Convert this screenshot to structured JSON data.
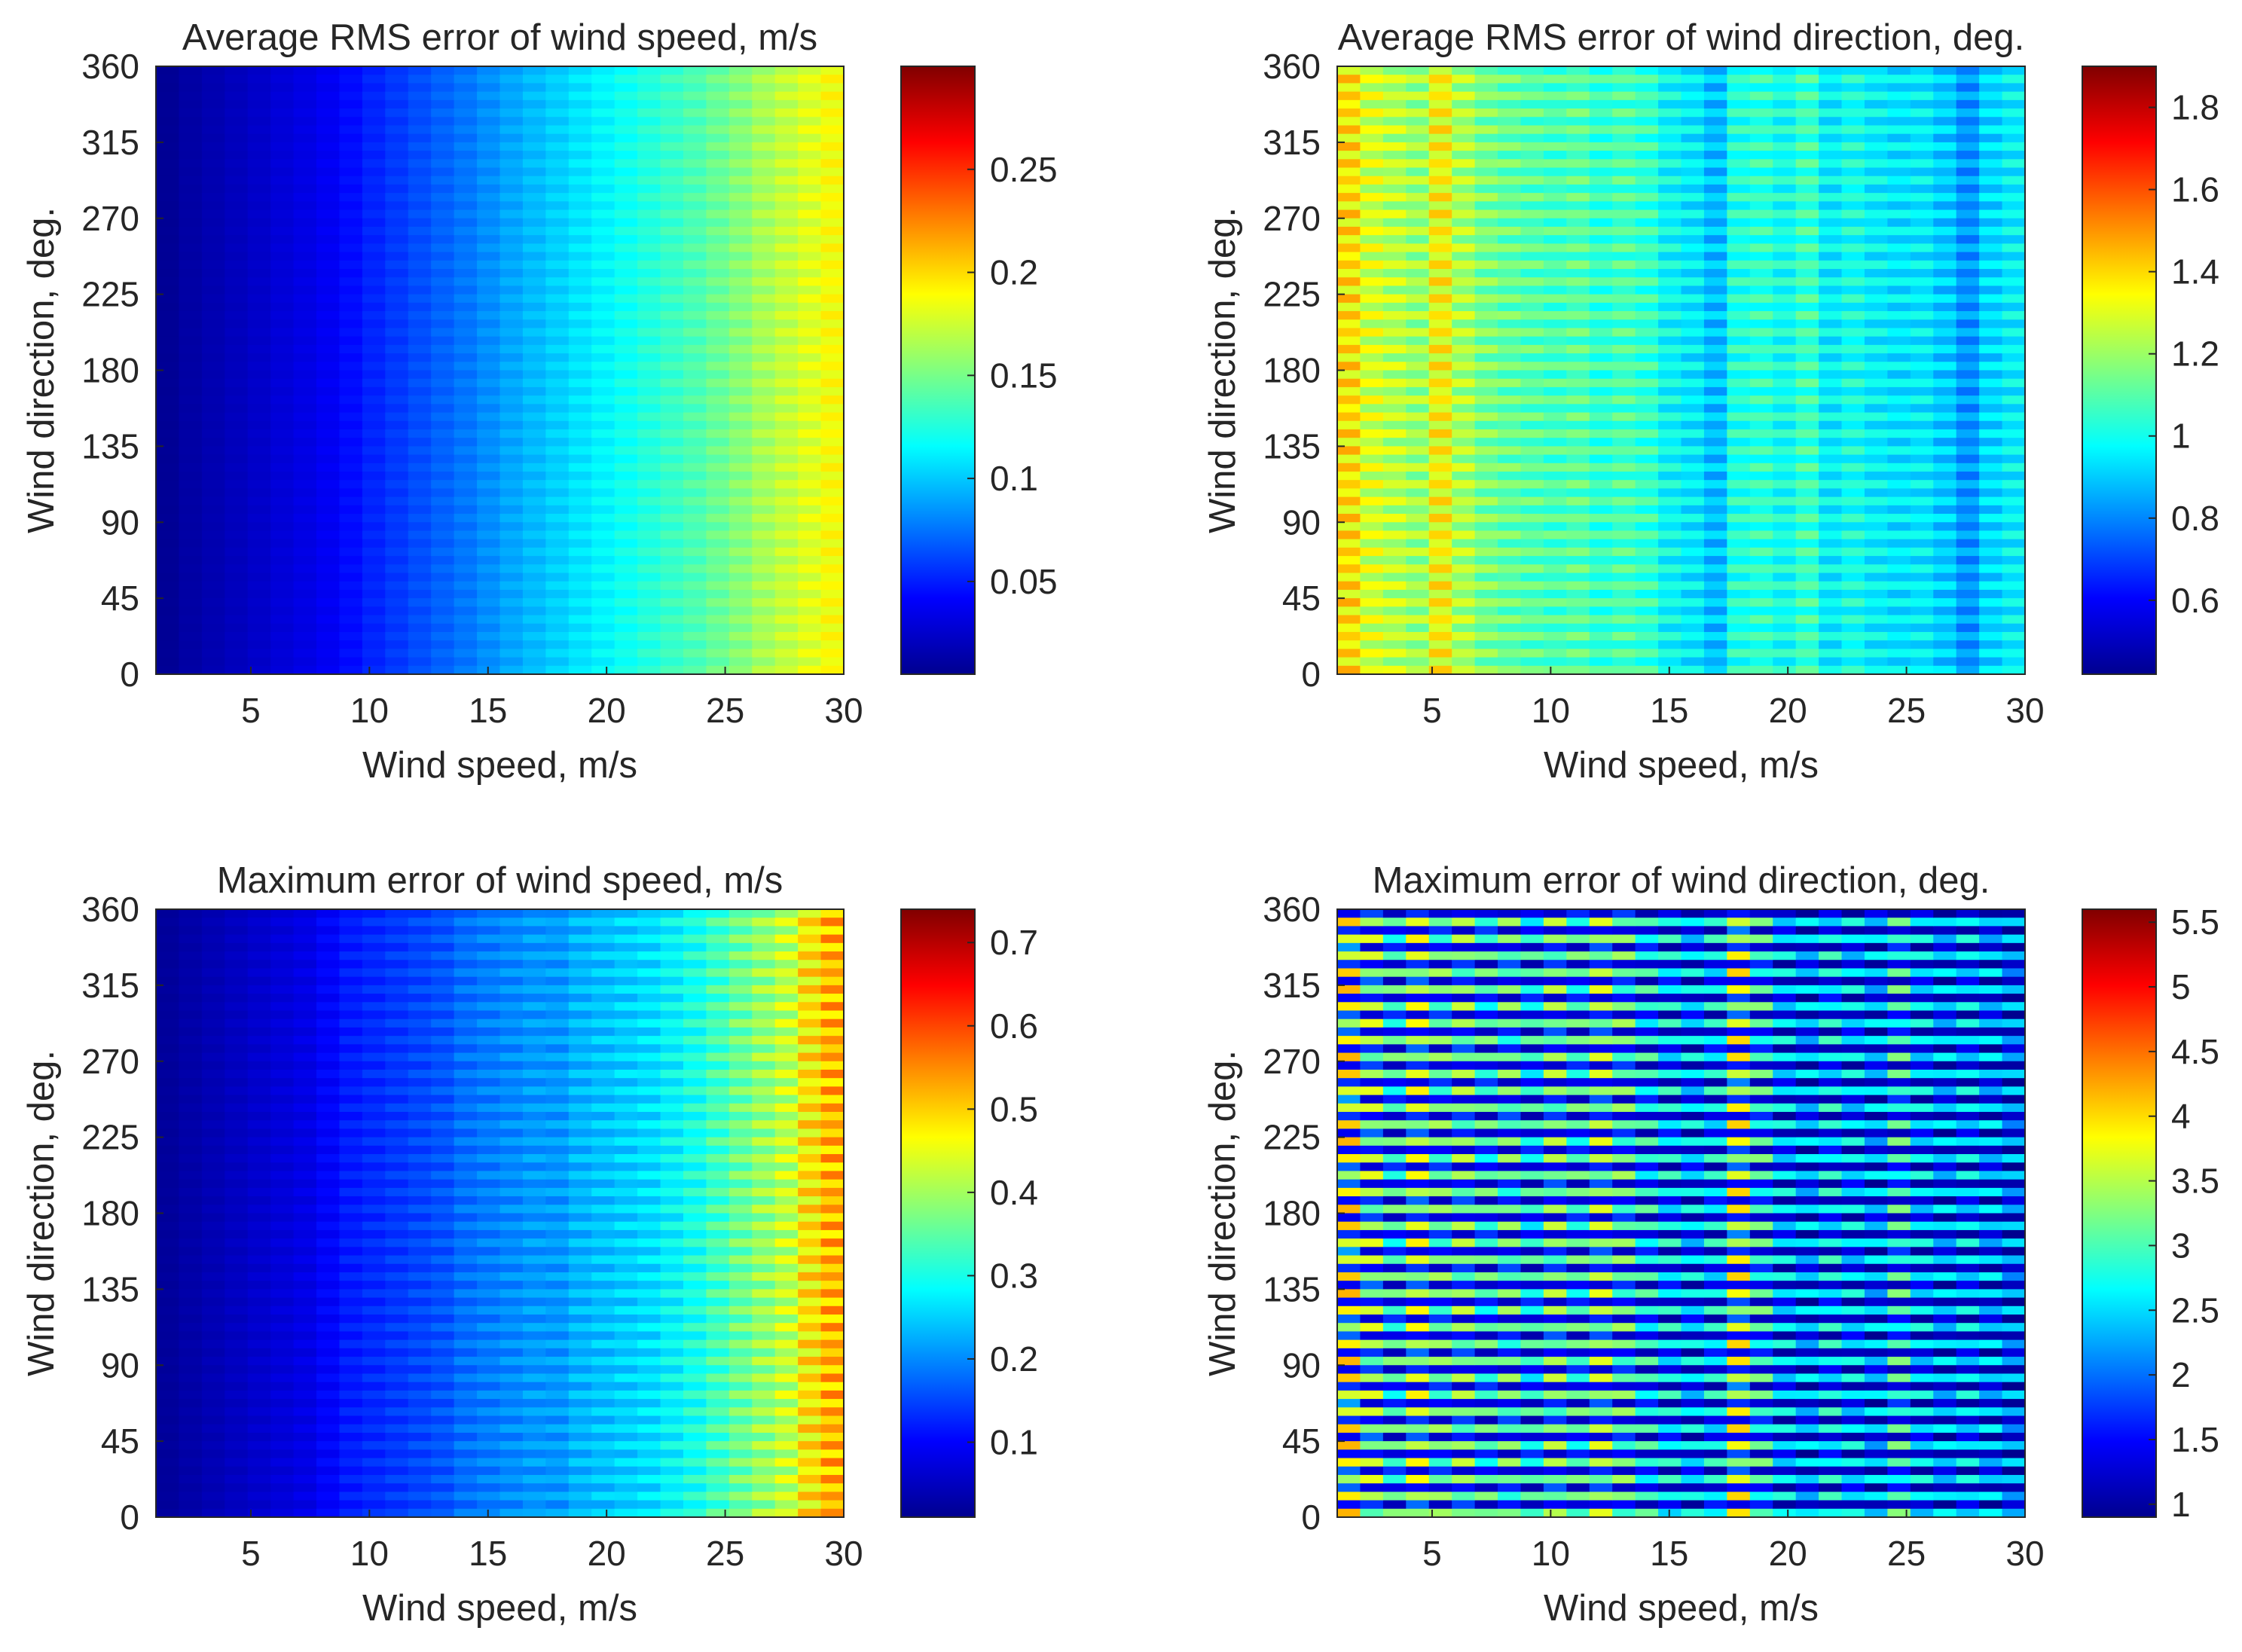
{
  "figure": {
    "colormap_stops": [
      "#00008f",
      "#0000ff",
      "#0080ff",
      "#00ffff",
      "#80ff80",
      "#ffff00",
      "#ff8000",
      "#ff0000",
      "#800000"
    ]
  },
  "chart_data": [
    {
      "type": "heatmap",
      "title": "Average RMS error of wind speed, m/s",
      "xlabel": "Wind speed, m/s",
      "ylabel": "Wind direction, deg.",
      "xlim": [
        1,
        30
      ],
      "ylim": [
        0,
        360
      ],
      "x_ticks": [
        "5",
        "10",
        "15",
        "20",
        "25",
        "30"
      ],
      "y_ticks": [
        "0",
        "45",
        "90",
        "135",
        "180",
        "225",
        "270",
        "315",
        "360"
      ],
      "colorbar": {
        "range": [
          0.005,
          0.3
        ],
        "ticks": [
          "0.05",
          "0.1",
          "0.15",
          "0.2",
          "0.25"
        ]
      },
      "x": [
        1,
        2,
        3,
        4,
        5,
        6,
        7,
        8,
        9,
        10,
        11,
        12,
        13,
        14,
        15,
        16,
        17,
        18,
        19,
        20,
        21,
        22,
        23,
        24,
        25,
        26,
        27,
        28,
        29,
        30
      ],
      "column_values": [
        0.007,
        0.012,
        0.016,
        0.02,
        0.024,
        0.029,
        0.033,
        0.038,
        0.045,
        0.052,
        0.058,
        0.064,
        0.07,
        0.076,
        0.083,
        0.09,
        0.096,
        0.102,
        0.108,
        0.114,
        0.12,
        0.126,
        0.132,
        0.138,
        0.146,
        0.154,
        0.164,
        0.172,
        0.18,
        0.188
      ],
      "stripe_amplitude": 0.04
    },
    {
      "type": "heatmap",
      "title": "Average RMS error of wind direction, deg.",
      "xlabel": "Wind speed, m/s",
      "ylabel": "Wind direction, deg.",
      "xlim": [
        1,
        30
      ],
      "ylim": [
        0,
        360
      ],
      "x_ticks": [
        "5",
        "10",
        "15",
        "20",
        "25",
        "30"
      ],
      "y_ticks": [
        "0",
        "45",
        "90",
        "135",
        "180",
        "225",
        "270",
        "315",
        "360"
      ],
      "colorbar": {
        "range": [
          0.42,
          1.9
        ],
        "ticks": [
          "0.6",
          "0.8",
          "1",
          "1.2",
          "1.4",
          "1.6",
          "1.8"
        ]
      },
      "x": [
        1,
        2,
        3,
        4,
        5,
        6,
        7,
        8,
        9,
        10,
        11,
        12,
        13,
        14,
        15,
        16,
        17,
        18,
        19,
        20,
        21,
        22,
        23,
        24,
        25,
        26,
        27,
        28,
        29,
        30
      ],
      "column_values": [
        1.38,
        1.28,
        1.24,
        1.2,
        1.34,
        1.22,
        1.15,
        1.12,
        1.1,
        1.08,
        1.1,
        1.05,
        1.08,
        1.05,
        0.98,
        0.95,
        0.88,
        1.02,
        1.04,
        1.0,
        1.06,
        0.96,
        1.0,
        0.96,
        0.94,
        0.95,
        0.9,
        0.82,
        0.92,
        0.96
      ],
      "stripe_amplitude": 0.07
    },
    {
      "type": "heatmap",
      "title": "Maximum error of wind speed, m/s",
      "xlabel": "Wind speed, m/s",
      "ylabel": "Wind direction, deg.",
      "xlim": [
        1,
        30
      ],
      "ylim": [
        0,
        360
      ],
      "x_ticks": [
        "5",
        "10",
        "15",
        "20",
        "25",
        "30"
      ],
      "y_ticks": [
        "0",
        "45",
        "90",
        "135",
        "180",
        "225",
        "270",
        "315",
        "360"
      ],
      "colorbar": {
        "range": [
          0.01,
          0.74
        ],
        "ticks": [
          "0.1",
          "0.2",
          "0.3",
          "0.4",
          "0.5",
          "0.6",
          "0.7"
        ]
      },
      "x": [
        1,
        2,
        3,
        4,
        5,
        6,
        7,
        8,
        9,
        10,
        11,
        12,
        13,
        14,
        15,
        16,
        17,
        18,
        19,
        20,
        21,
        22,
        23,
        24,
        25,
        26,
        27,
        28,
        29,
        30
      ],
      "column_values": [
        0.02,
        0.03,
        0.04,
        0.05,
        0.06,
        0.07,
        0.08,
        0.1,
        0.12,
        0.13,
        0.14,
        0.15,
        0.16,
        0.18,
        0.19,
        0.2,
        0.21,
        0.21,
        0.23,
        0.24,
        0.25,
        0.26,
        0.28,
        0.3,
        0.33,
        0.36,
        0.39,
        0.42,
        0.48,
        0.52
      ],
      "stripe_amplitude": 0.1
    },
    {
      "type": "heatmap",
      "title": "Maximum error of wind direction, deg.",
      "xlabel": "Wind speed, m/s",
      "ylabel": "Wind direction, deg.",
      "xlim": [
        1,
        30
      ],
      "ylim": [
        0,
        360
      ],
      "x_ticks": [
        "5",
        "10",
        "15",
        "20",
        "25",
        "30"
      ],
      "y_ticks": [
        "0",
        "45",
        "90",
        "135",
        "180",
        "225",
        "270",
        "315",
        "360"
      ],
      "colorbar": {
        "range": [
          0.9,
          5.6
        ],
        "ticks": [
          "1",
          "1.5",
          "2",
          "2.5",
          "3",
          "3.5",
          "4",
          "4.5",
          "5",
          "5.5"
        ]
      },
      "x": [
        1,
        2,
        3,
        4,
        5,
        6,
        7,
        8,
        9,
        10,
        11,
        12,
        13,
        14,
        15,
        16,
        17,
        18,
        19,
        20,
        21,
        22,
        23,
        24,
        25,
        26,
        27,
        28,
        29,
        30
      ],
      "column_values": [
        2.8,
        2.5,
        2.2,
        2.6,
        2.3,
        2.4,
        2.2,
        2.3,
        2.1,
        2.4,
        2.2,
        2.5,
        2.3,
        2.1,
        2.0,
        1.9,
        2.0,
        2.7,
        2.2,
        1.9,
        1.8,
        2.0,
        1.9,
        1.8,
        2.2,
        1.9,
        1.8,
        1.9,
        1.8,
        1.7
      ],
      "stripe_amplitude": 0.5
    }
  ]
}
